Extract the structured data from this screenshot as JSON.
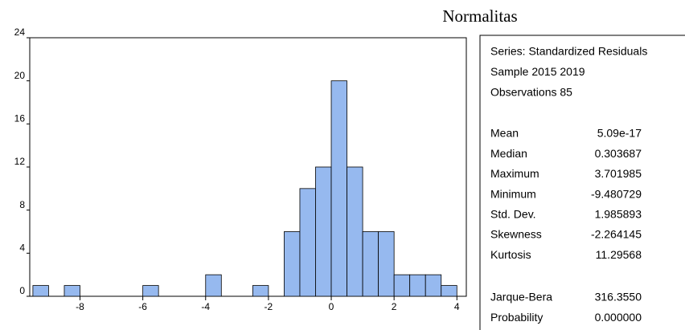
{
  "chart_data": {
    "type": "histogram",
    "title": "Normalitas",
    "bins": [
      -9.5,
      -9.0,
      -8.5,
      -8.0,
      -7.5,
      -7.0,
      -6.5,
      -6.0,
      -5.5,
      -5.0,
      -4.5,
      -4.0,
      -3.5,
      -3.0,
      -2.5,
      -2.0,
      -1.5,
      -1.0,
      -0.5,
      0.0,
      0.5,
      1.0,
      1.5,
      2.0,
      2.5,
      3.0,
      3.5,
      4.0
    ],
    "counts": [
      1,
      0,
      1,
      0,
      0,
      0,
      0,
      1,
      0,
      0,
      0,
      2,
      0,
      0,
      1,
      0,
      6,
      10,
      12,
      20,
      12,
      6,
      6,
      2,
      2,
      2,
      1
    ],
    "color": "#96b9ef",
    "xlim": [
      -9.6,
      4.3
    ],
    "xticks": [
      -8,
      -6,
      -4,
      -2,
      0,
      2,
      4
    ],
    "ylim": [
      0,
      24
    ],
    "yticks": [
      0,
      4,
      8,
      12,
      16,
      20,
      24
    ]
  },
  "stats": {
    "header": [
      "Series: Standardized Residuals",
      "Sample 2015 2019",
      "Observations 85"
    ],
    "rows": [
      [
        "Mean",
        "5.09e-17"
      ],
      [
        "Median",
        "0.303687"
      ],
      [
        "Maximum",
        "3.701985"
      ],
      [
        "Minimum",
        "-9.480729"
      ],
      [
        "Std. Dev.",
        "1.985893"
      ],
      [
        "Skewness",
        "-2.264145"
      ],
      [
        "Kurtosis",
        "11.29568"
      ]
    ],
    "test_rows": [
      [
        "Jarque-Bera",
        "316.3550"
      ],
      [
        "Probability",
        "0.000000"
      ]
    ]
  }
}
